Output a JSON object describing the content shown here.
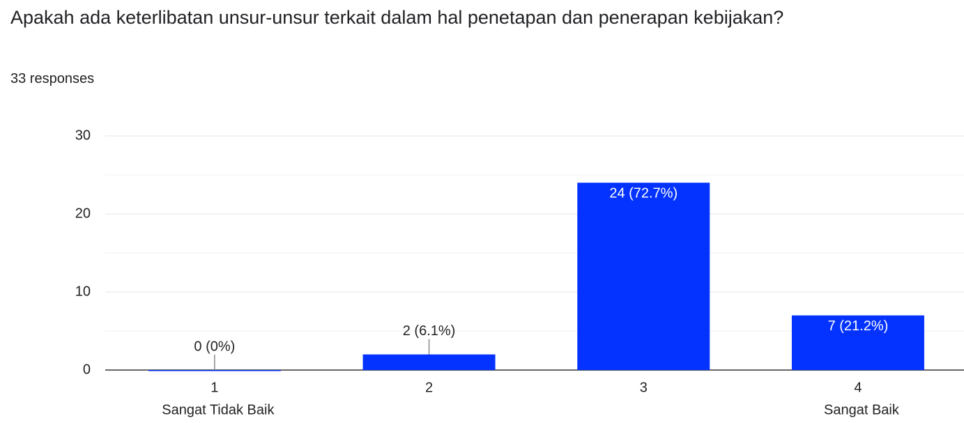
{
  "chart_data": {
    "type": "bar",
    "title": "Apakah ada keterlibatan unsur-unsur terkait dalam hal penetapan dan penerapan kebijakan?",
    "subtitle": "33 responses",
    "categories": [
      "1",
      "2",
      "3",
      "4"
    ],
    "category_sublabels": [
      "Sangat Tidak Baik",
      null,
      null,
      "Sangat Baik"
    ],
    "values": [
      0,
      2,
      24,
      7
    ],
    "value_labels": [
      "0 (0%)",
      "2 (6.1%)",
      "24 (72.7%)",
      "7 (21.2%)"
    ],
    "color": "#0433ff",
    "ylim": [
      0,
      30
    ],
    "yticks": [
      0,
      10,
      20,
      30
    ],
    "minor_yticks": [
      5,
      15,
      25
    ],
    "grid": true
  }
}
